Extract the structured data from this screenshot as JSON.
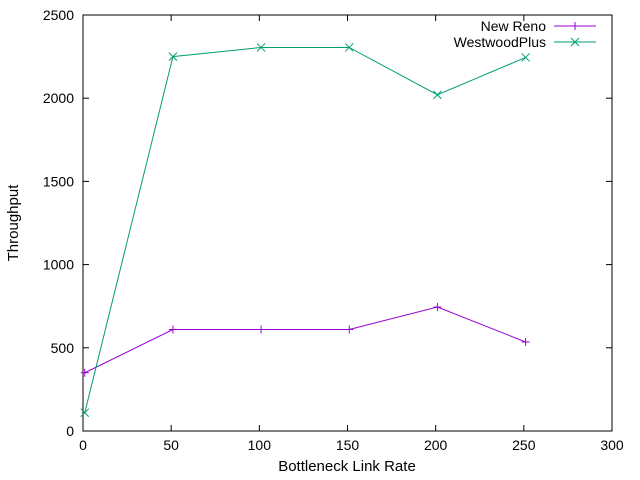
{
  "chart_data": {
    "type": "line",
    "title": "",
    "xlabel": "Bottleneck Link Rate",
    "ylabel": "Throughput",
    "xlim": [
      0,
      300
    ],
    "ylim": [
      0,
      2500
    ],
    "xticks": [
      0,
      50,
      100,
      150,
      200,
      250,
      300
    ],
    "yticks": [
      0,
      500,
      1000,
      1500,
      2000,
      2500
    ],
    "grid": false,
    "legend_position": "top-right",
    "series": [
      {
        "name": "New Reno",
        "color": "#9400d3",
        "marker": "plus",
        "x": [
          1,
          51,
          101,
          151,
          201,
          251
        ],
        "y": [
          350,
          610,
          610,
          610,
          745,
          535
        ]
      },
      {
        "name": "WestwoodPlus",
        "color": "#009e73",
        "marker": "cross",
        "x": [
          1,
          51,
          101,
          151,
          201,
          251
        ],
        "y": [
          110,
          2250,
          2305,
          2305,
          2020,
          2245
        ]
      }
    ]
  }
}
